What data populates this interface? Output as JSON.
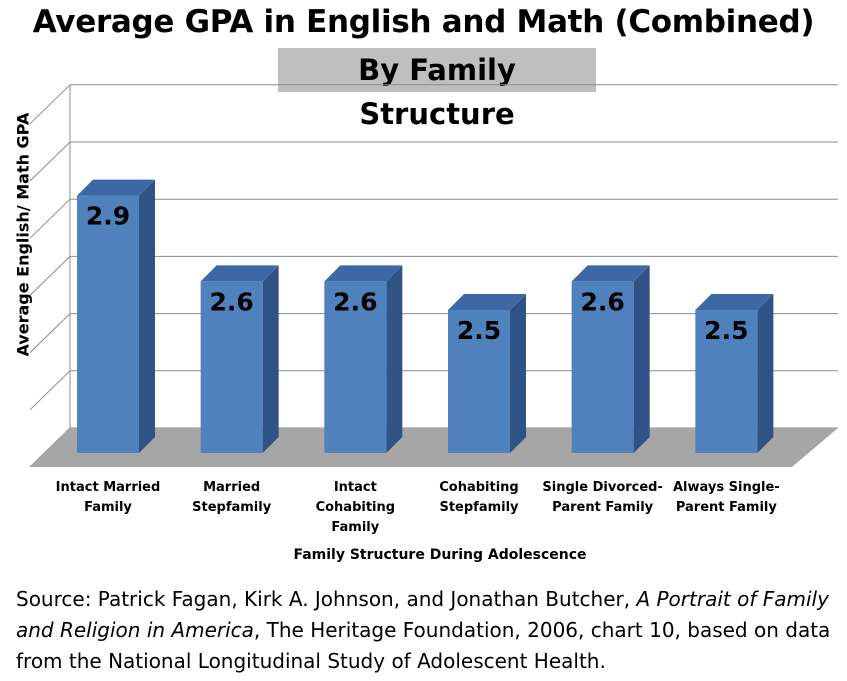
{
  "chart_data": {
    "type": "bar",
    "title": "Average GPA in English and Math (Combined)",
    "subtitle": "By Family Structure",
    "xlabel": "Family Structure During Adolescence",
    "ylabel": "Average English/  Math GPA",
    "categories": [
      "Intact Married\nFamily",
      "Married\nStepfamily",
      "Intact\nCohabiting\nFamily",
      "Cohabiting\nStepfamily",
      "Single Divorced-\nParent Family",
      "Always Single-\nParent Family"
    ],
    "values": [
      2.9,
      2.6,
      2.6,
      2.5,
      2.6,
      2.5
    ],
    "data_labels": [
      "2.9",
      "2.6",
      "2.6",
      "2.5",
      "2.6",
      "2.5"
    ],
    "ylim": [
      2.0,
      3.2
    ],
    "grid": true,
    "legend": "none",
    "style": "3d-column"
  },
  "source": {
    "prefix": "Source:  Patrick Fagan, Kirk A. Johnson, and Jonathan Butcher, ",
    "italic": "A Portrait of Family and Religion in America",
    "suffix": ", The Heritage Foundation, 2006, chart 10, based on data from the National Longitudinal Study of Adolescent Health."
  },
  "colors": {
    "bar_front": "#4f81bd",
    "bar_side": "#2f5385",
    "bar_top": "#3c69a6",
    "floor": "#a6a6a6",
    "gridline": "#8c8c8c",
    "subtitle_bg": "#bfbfbf"
  }
}
